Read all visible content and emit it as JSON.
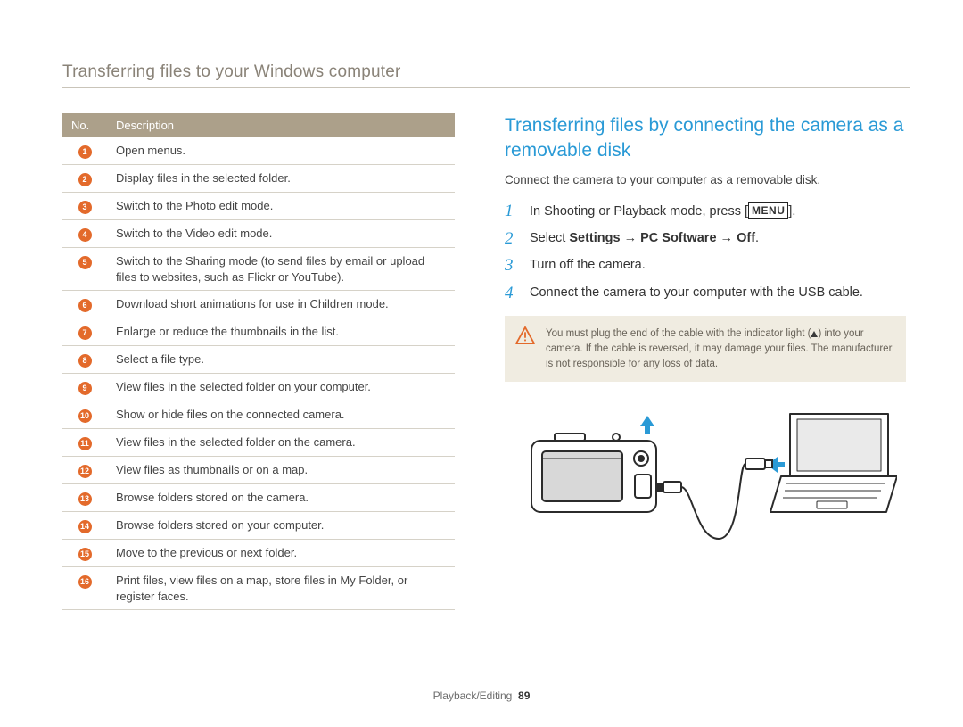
{
  "page_title": "Transferring files to your Windows computer",
  "footer": {
    "section": "Playback/Editing",
    "page_no": "89"
  },
  "colors": {
    "header_bg": "#aca08a",
    "circle_bg": "#e36a2b",
    "accent": "#2a9ad6",
    "note_bg": "#f0ece1",
    "rule": "#c9c4b9"
  },
  "table": {
    "headers": {
      "no": "No.",
      "desc": "Description"
    },
    "rows": [
      {
        "n": "1",
        "d": "Open menus."
      },
      {
        "n": "2",
        "d": "Display files in the selected folder."
      },
      {
        "n": "3",
        "d": "Switch to the Photo edit mode."
      },
      {
        "n": "4",
        "d": "Switch to the Video edit mode."
      },
      {
        "n": "5",
        "d": "Switch to the Sharing mode (to send files by email or upload files to websites, such as Flickr or YouTube)."
      },
      {
        "n": "6",
        "d": "Download short animations for use in Children mode."
      },
      {
        "n": "7",
        "d": "Enlarge or reduce the thumbnails in the list."
      },
      {
        "n": "8",
        "d": "Select a file type."
      },
      {
        "n": "9",
        "d": "View files in the selected folder on your computer."
      },
      {
        "n": "10",
        "d": "Show or hide files on the connected camera."
      },
      {
        "n": "11",
        "d": "View files in the selected folder on the camera."
      },
      {
        "n": "12",
        "d": "View files as thumbnails or on a map."
      },
      {
        "n": "13",
        "d": "Browse folders stored on the camera."
      },
      {
        "n": "14",
        "d": "Browse folders stored on your computer."
      },
      {
        "n": "15",
        "d": "Move to the previous or next folder."
      },
      {
        "n": "16",
        "d": "Print files, view files on a map, store files in My Folder, or register faces."
      }
    ]
  },
  "right": {
    "heading": "Transferring files by connecting the camera as a removable disk",
    "sub": "Connect the camera to your computer as a removable disk.",
    "steps": {
      "s1_a": "In Shooting or Playback mode, press [",
      "s1_menu": "MENU",
      "s1_b": "].",
      "s2_a": "Select ",
      "s2_b": "Settings",
      "s2_arrow1": " → ",
      "s2_c": "PC Software",
      "s2_arrow2": " → ",
      "s2_d": "Off",
      "s2_e": ".",
      "s3": "Turn off the camera.",
      "s4": "Connect the camera to your computer with the USB cable."
    },
    "note_a": "You must plug the end of the cable with the indicator light (",
    "note_b": ") into your camera. If the cable is reversed, it may damage your files. The manufacturer is not responsible for any loss of data."
  }
}
